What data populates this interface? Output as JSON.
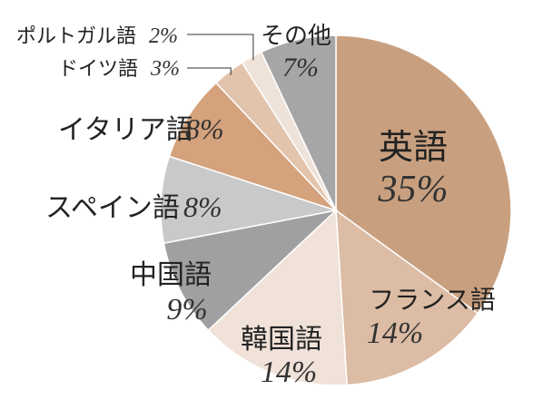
{
  "chart_data": {
    "type": "pie",
    "start": "12 o'clock",
    "direction": "clockwise",
    "slices": [
      {
        "label": "英語",
        "value": 35,
        "value_text": "35%",
        "color": "#c9a07f"
      },
      {
        "label": "フランス語",
        "value": 14,
        "value_text": "14%",
        "color": "#dcbca4"
      },
      {
        "label": "韓国語",
        "value": 14,
        "value_text": "14%",
        "color": "#f0e2d8"
      },
      {
        "label": "中国語",
        "value": 9,
        "value_text": "9%",
        "color": "#a0a0a2"
      },
      {
        "label": "スペイン語",
        "value": 8,
        "value_text": "8%",
        "color": "#c8c9cb"
      },
      {
        "label": "イタリア語",
        "value": 8,
        "value_text": "8%",
        "color": "#d4a27c"
      },
      {
        "label": "ドイツ語",
        "value": 3,
        "value_text": "3%",
        "color": "#e2c4ad"
      },
      {
        "label": "ポルトガル語",
        "value": 2,
        "value_text": "2%",
        "color": "#efe2d8"
      },
      {
        "label": "その他",
        "value": 7,
        "value_text": "7%",
        "color": "#a6a6a8"
      }
    ]
  }
}
